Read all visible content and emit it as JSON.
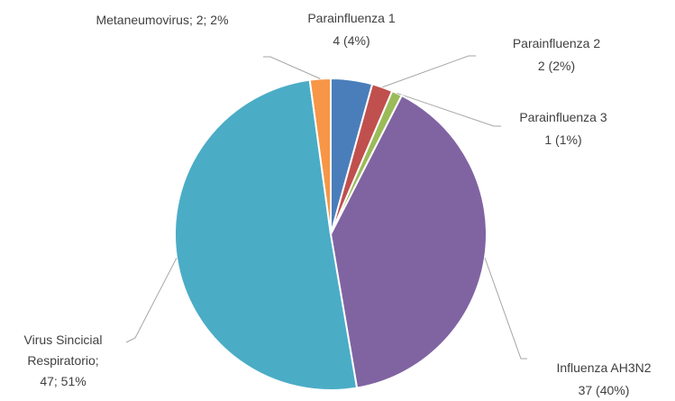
{
  "chart_data": {
    "type": "pie",
    "categories": [
      "Parainfluenza 1",
      "Parainfluenza 2",
      "Parainfluenza 3",
      "Influenza AH3N2",
      "Virus Sincicial Respiratorio;",
      "Metaneumovirus;"
    ],
    "values": [
      4,
      2,
      1,
      37,
      47,
      2
    ],
    "value_labels": [
      "4 (4%)",
      "2 (2%)",
      "1 (1%)",
      "37 (40%)",
      "47; 51%",
      "2; 2%"
    ],
    "colors": [
      "#4a7ebb",
      "#c0504d",
      "#9bbb59",
      "#8064a2",
      "#4bacc6",
      "#f79646"
    ]
  }
}
